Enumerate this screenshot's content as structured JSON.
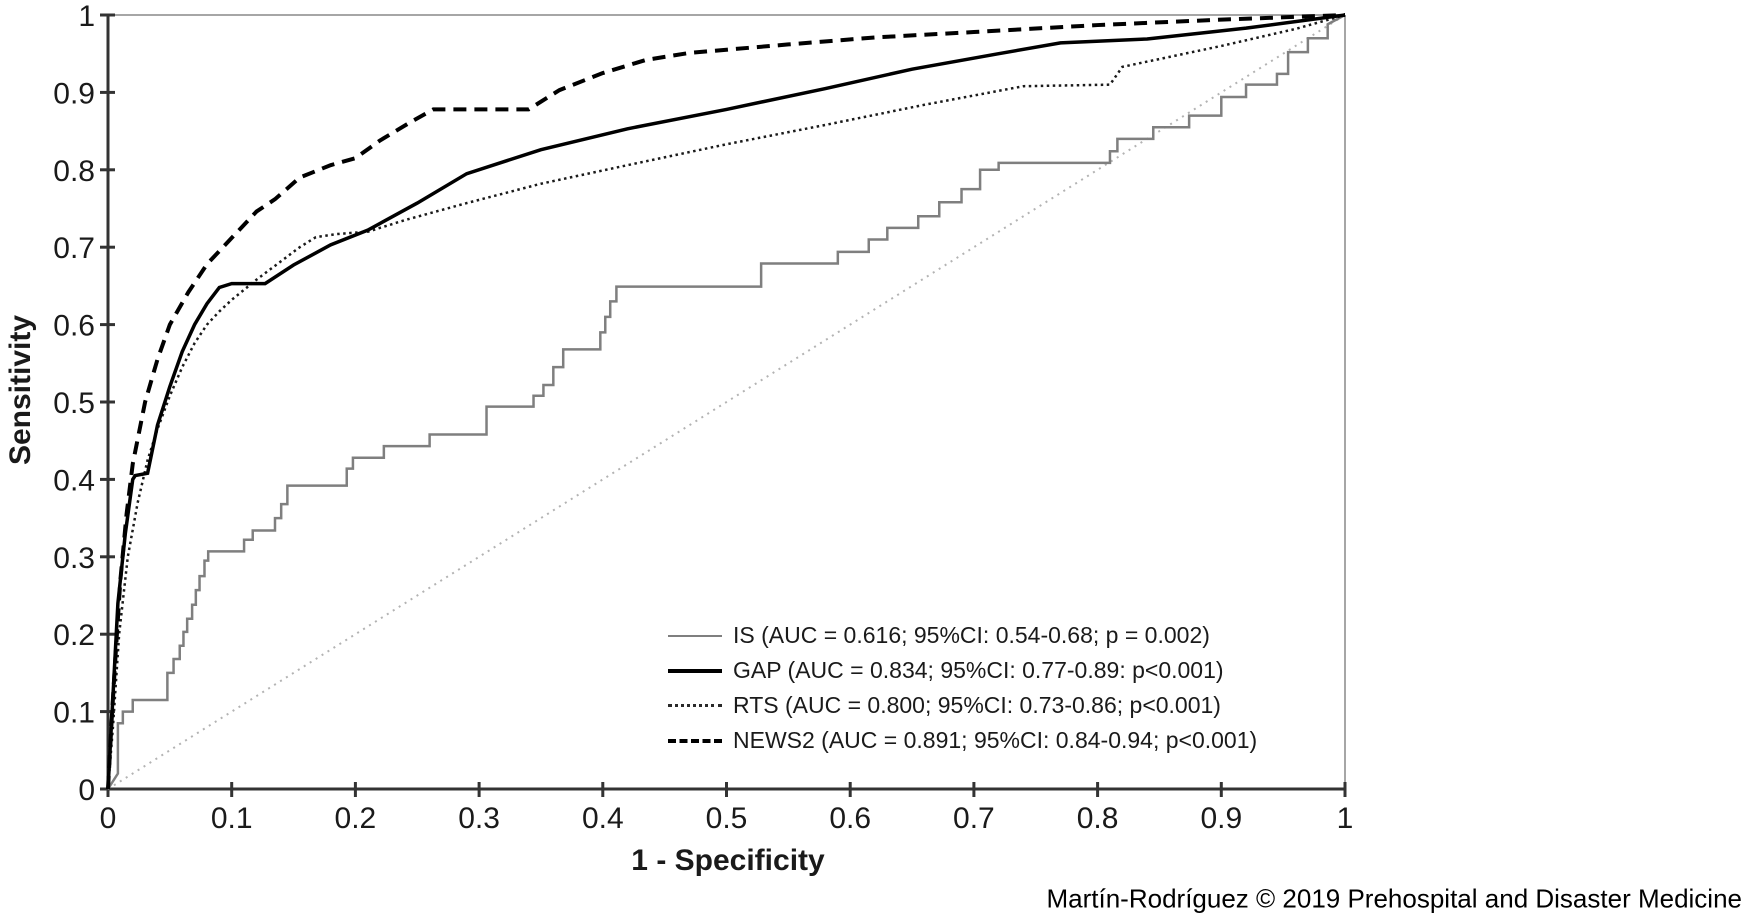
{
  "page": {
    "background": "#ffffff",
    "attribution": "Martín-Rodríguez © 2019 Prehospital and Disaster Medicine"
  },
  "axes": {
    "x_label": "1 - Specificity",
    "y_label": "Sensitivity",
    "tick_labels": [
      "0",
      "0.1",
      "0.2",
      "0.3",
      "0.4",
      "0.5",
      "0.6",
      "0.7",
      "0.8",
      "0.9",
      "1"
    ],
    "tick_values": [
      0,
      0.1,
      0.2,
      0.3,
      0.4,
      0.5,
      0.6,
      0.7,
      0.8,
      0.9,
      1
    ],
    "axis_color": "#333333",
    "frame_color": "#a6a6a6",
    "tick_label_color": "#1a1a1a"
  },
  "legend": {
    "items": [
      {
        "id": "is",
        "label": "IS (AUC = 0.616; 95%CI: 0.54-0.68; p = 0.002)"
      },
      {
        "id": "gap",
        "label": "GAP (AUC = 0.834; 95%CI: 0.77-0.89: p<0.001)"
      },
      {
        "id": "rts",
        "label": "RTS (AUC = 0.800; 95%CI: 0.73-0.86; p<0.001)"
      },
      {
        "id": "news2",
        "label": "NEWS2 (AUC = 0.891; 95%CI: 0.84-0.94; p<0.001)"
      }
    ]
  },
  "chart_data": {
    "type": "line",
    "title": "",
    "xlabel": "1 - Specificity",
    "ylabel": "Sensitivity",
    "xlim": [
      0,
      1
    ],
    "ylim": [
      0,
      1
    ],
    "grid": false,
    "legend_position": "lower right",
    "reference_diagonal": {
      "name": "chance-line",
      "color": "#b3b3b3",
      "width": 2,
      "dash": "2 5",
      "points": [
        [
          0,
          0
        ],
        [
          1,
          1
        ]
      ]
    },
    "series": [
      {
        "name": "IS",
        "auc": 0.616,
        "ci95": "0.54-0.68",
        "p": "= 0.002",
        "color": "#7f7f7f",
        "width": 2.5,
        "dash": "",
        "points": [
          [
            0,
            0
          ],
          [
            0.008,
            0.02
          ],
          [
            0.008,
            0.085
          ],
          [
            0.012,
            0.085
          ],
          [
            0.012,
            0.1
          ],
          [
            0.02,
            0.1
          ],
          [
            0.02,
            0.115
          ],
          [
            0.048,
            0.115
          ],
          [
            0.048,
            0.15
          ],
          [
            0.053,
            0.15
          ],
          [
            0.053,
            0.168
          ],
          [
            0.058,
            0.168
          ],
          [
            0.058,
            0.185
          ],
          [
            0.061,
            0.185
          ],
          [
            0.061,
            0.203
          ],
          [
            0.064,
            0.203
          ],
          [
            0.064,
            0.22
          ],
          [
            0.068,
            0.22
          ],
          [
            0.068,
            0.238
          ],
          [
            0.071,
            0.238
          ],
          [
            0.071,
            0.257
          ],
          [
            0.074,
            0.257
          ],
          [
            0.074,
            0.275
          ],
          [
            0.078,
            0.275
          ],
          [
            0.078,
            0.295
          ],
          [
            0.081,
            0.295
          ],
          [
            0.081,
            0.307
          ],
          [
            0.11,
            0.307
          ],
          [
            0.11,
            0.322
          ],
          [
            0.117,
            0.322
          ],
          [
            0.117,
            0.334
          ],
          [
            0.135,
            0.334
          ],
          [
            0.135,
            0.35
          ],
          [
            0.14,
            0.35
          ],
          [
            0.14,
            0.368
          ],
          [
            0.145,
            0.368
          ],
          [
            0.145,
            0.392
          ],
          [
            0.193,
            0.392
          ],
          [
            0.193,
            0.414
          ],
          [
            0.198,
            0.414
          ],
          [
            0.198,
            0.428
          ],
          [
            0.223,
            0.428
          ],
          [
            0.223,
            0.443
          ],
          [
            0.26,
            0.443
          ],
          [
            0.26,
            0.458
          ],
          [
            0.306,
            0.458
          ],
          [
            0.306,
            0.494
          ],
          [
            0.344,
            0.494
          ],
          [
            0.344,
            0.508
          ],
          [
            0.352,
            0.508
          ],
          [
            0.352,
            0.522
          ],
          [
            0.36,
            0.522
          ],
          [
            0.36,
            0.545
          ],
          [
            0.368,
            0.545
          ],
          [
            0.368,
            0.568
          ],
          [
            0.398,
            0.568
          ],
          [
            0.398,
            0.59
          ],
          [
            0.402,
            0.59
          ],
          [
            0.402,
            0.61
          ],
          [
            0.406,
            0.61
          ],
          [
            0.406,
            0.63
          ],
          [
            0.411,
            0.63
          ],
          [
            0.411,
            0.649
          ],
          [
            0.528,
            0.649
          ],
          [
            0.528,
            0.679
          ],
          [
            0.59,
            0.679
          ],
          [
            0.59,
            0.694
          ],
          [
            0.615,
            0.694
          ],
          [
            0.615,
            0.71
          ],
          [
            0.63,
            0.71
          ],
          [
            0.63,
            0.725
          ],
          [
            0.655,
            0.725
          ],
          [
            0.655,
            0.74
          ],
          [
            0.672,
            0.74
          ],
          [
            0.672,
            0.758
          ],
          [
            0.69,
            0.758
          ],
          [
            0.69,
            0.775
          ],
          [
            0.705,
            0.775
          ],
          [
            0.705,
            0.8
          ],
          [
            0.72,
            0.8
          ],
          [
            0.72,
            0.809
          ],
          [
            0.81,
            0.809
          ],
          [
            0.81,
            0.824
          ],
          [
            0.816,
            0.824
          ],
          [
            0.816,
            0.84
          ],
          [
            0.845,
            0.84
          ],
          [
            0.845,
            0.855
          ],
          [
            0.874,
            0.855
          ],
          [
            0.874,
            0.87
          ],
          [
            0.9,
            0.87
          ],
          [
            0.9,
            0.894
          ],
          [
            0.92,
            0.894
          ],
          [
            0.92,
            0.91
          ],
          [
            0.945,
            0.91
          ],
          [
            0.945,
            0.924
          ],
          [
            0.954,
            0.924
          ],
          [
            0.954,
            0.952
          ],
          [
            0.97,
            0.952
          ],
          [
            0.97,
            0.97
          ],
          [
            0.986,
            0.97
          ],
          [
            0.986,
            0.988
          ],
          [
            1,
            1
          ]
        ]
      },
      {
        "name": "GAP",
        "auc": 0.834,
        "ci95": "0.77-0.89",
        "p": "<0.001",
        "color": "#000000",
        "width": 3.5,
        "dash": "",
        "points": [
          [
            0,
            0
          ],
          [
            0.004,
            0.12
          ],
          [
            0.008,
            0.24
          ],
          [
            0.014,
            0.33
          ],
          [
            0.02,
            0.4
          ],
          [
            0.022,
            0.405
          ],
          [
            0.032,
            0.408
          ],
          [
            0.04,
            0.47
          ],
          [
            0.05,
            0.52
          ],
          [
            0.06,
            0.565
          ],
          [
            0.07,
            0.6
          ],
          [
            0.08,
            0.627
          ],
          [
            0.09,
            0.648
          ],
          [
            0.1,
            0.653
          ],
          [
            0.127,
            0.653
          ],
          [
            0.15,
            0.677
          ],
          [
            0.18,
            0.703
          ],
          [
            0.21,
            0.722
          ],
          [
            0.25,
            0.757
          ],
          [
            0.29,
            0.795
          ],
          [
            0.35,
            0.826
          ],
          [
            0.42,
            0.853
          ],
          [
            0.5,
            0.878
          ],
          [
            0.58,
            0.905
          ],
          [
            0.65,
            0.93
          ],
          [
            0.72,
            0.95
          ],
          [
            0.77,
            0.964
          ],
          [
            0.84,
            0.969
          ],
          [
            0.92,
            0.983
          ],
          [
            1,
            1
          ]
        ]
      },
      {
        "name": "RTS",
        "auc": 0.8,
        "ci95": "0.73-0.86",
        "p": "<0.001",
        "color": "#1a1a1a",
        "width": 2.5,
        "dash": "2.5 3.5",
        "points": [
          [
            0,
            0
          ],
          [
            0.004,
            0.08
          ],
          [
            0.009,
            0.2
          ],
          [
            0.016,
            0.3
          ],
          [
            0.024,
            0.37
          ],
          [
            0.032,
            0.425
          ],
          [
            0.04,
            0.465
          ],
          [
            0.05,
            0.508
          ],
          [
            0.06,
            0.545
          ],
          [
            0.07,
            0.576
          ],
          [
            0.08,
            0.6
          ],
          [
            0.09,
            0.617
          ],
          [
            0.1,
            0.632
          ],
          [
            0.12,
            0.658
          ],
          [
            0.14,
            0.682
          ],
          [
            0.155,
            0.7
          ],
          [
            0.168,
            0.713
          ],
          [
            0.185,
            0.717
          ],
          [
            0.21,
            0.72
          ],
          [
            0.24,
            0.735
          ],
          [
            0.29,
            0.757
          ],
          [
            0.35,
            0.782
          ],
          [
            0.42,
            0.806
          ],
          [
            0.5,
            0.833
          ],
          [
            0.58,
            0.858
          ],
          [
            0.66,
            0.884
          ],
          [
            0.74,
            0.908
          ],
          [
            0.81,
            0.91
          ],
          [
            0.82,
            0.933
          ],
          [
            0.9,
            0.96
          ],
          [
            0.96,
            0.982
          ],
          [
            1,
            1
          ]
        ]
      },
      {
        "name": "NEWS2",
        "auc": 0.891,
        "ci95": "0.84-0.94",
        "p": "<0.001",
        "color": "#000000",
        "width": 4,
        "dash": "13 8",
        "points": [
          [
            0,
            0
          ],
          [
            0.003,
            0.09
          ],
          [
            0.006,
            0.17
          ],
          [
            0.01,
            0.27
          ],
          [
            0.015,
            0.355
          ],
          [
            0.02,
            0.42
          ],
          [
            0.03,
            0.5
          ],
          [
            0.04,
            0.555
          ],
          [
            0.05,
            0.6
          ],
          [
            0.065,
            0.642
          ],
          [
            0.08,
            0.678
          ],
          [
            0.1,
            0.712
          ],
          [
            0.12,
            0.746
          ],
          [
            0.135,
            0.762
          ],
          [
            0.155,
            0.79
          ],
          [
            0.18,
            0.806
          ],
          [
            0.2,
            0.815
          ],
          [
            0.22,
            0.838
          ],
          [
            0.245,
            0.862
          ],
          [
            0.263,
            0.878
          ],
          [
            0.34,
            0.878
          ],
          [
            0.365,
            0.903
          ],
          [
            0.4,
            0.925
          ],
          [
            0.435,
            0.942
          ],
          [
            0.47,
            0.951
          ],
          [
            0.55,
            0.962
          ],
          [
            0.62,
            0.971
          ],
          [
            0.7,
            0.978
          ],
          [
            0.8,
            0.987
          ],
          [
            0.9,
            0.994
          ],
          [
            1,
            1
          ]
        ]
      }
    ]
  }
}
